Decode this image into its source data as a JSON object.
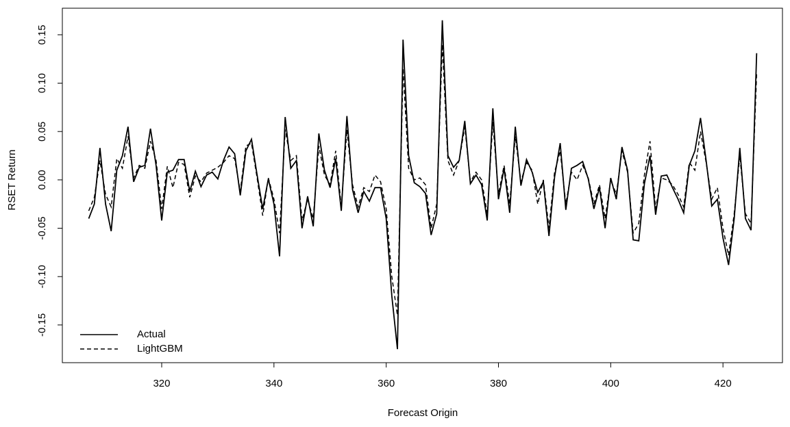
{
  "chart_data": {
    "type": "line",
    "x_label": "Forecast Origin",
    "y_label": "RSET Return",
    "x": [
      307,
      308,
      309,
      310,
      311,
      312,
      313,
      314,
      315,
      316,
      317,
      318,
      319,
      320,
      321,
      322,
      323,
      324,
      325,
      326,
      327,
      328,
      329,
      330,
      331,
      332,
      333,
      334,
      335,
      336,
      337,
      338,
      339,
      340,
      341,
      342,
      343,
      344,
      345,
      346,
      347,
      348,
      349,
      350,
      351,
      352,
      353,
      354,
      355,
      356,
      357,
      358,
      359,
      360,
      361,
      362,
      363,
      364,
      365,
      366,
      367,
      368,
      369,
      370,
      371,
      372,
      373,
      374,
      375,
      376,
      377,
      378,
      379,
      380,
      381,
      382,
      383,
      384,
      385,
      386,
      387,
      388,
      389,
      390,
      391,
      392,
      393,
      394,
      395,
      396,
      397,
      398,
      399,
      400,
      401,
      402,
      403,
      404,
      405,
      406,
      407,
      408,
      409,
      410,
      411,
      412,
      413,
      414,
      415,
      416,
      417,
      418,
      419,
      420,
      421,
      422,
      423,
      424,
      425,
      426
    ],
    "series": [
      {
        "name": "Actual",
        "color": "#000000",
        "dash": "solid",
        "values": [
          -0.04,
          -0.025,
          0.033,
          -0.025,
          -0.053,
          0.01,
          0.025,
          0.055,
          -0.002,
          0.013,
          0.015,
          0.053,
          0.015,
          -0.042,
          0.008,
          0.01,
          0.021,
          0.021,
          -0.012,
          0.009,
          -0.007,
          0.005,
          0.008,
          0.001,
          0.02,
          0.034,
          0.027,
          -0.016,
          0.03,
          0.042,
          0.005,
          -0.03,
          0.001,
          -0.025,
          -0.079,
          0.065,
          0.012,
          0.02,
          -0.05,
          -0.017,
          -0.048,
          0.048,
          0.01,
          -0.008,
          0.022,
          -0.032,
          0.066,
          -0.01,
          -0.034,
          -0.012,
          -0.022,
          -0.008,
          -0.008,
          -0.04,
          -0.12,
          -0.175,
          0.145,
          0.025,
          -0.003,
          -0.007,
          -0.014,
          -0.057,
          -0.035,
          0.165,
          0.025,
          0.013,
          0.02,
          0.061,
          -0.004,
          0.005,
          -0.005,
          -0.042,
          0.074,
          -0.02,
          0.012,
          -0.034,
          0.055,
          -0.006,
          0.021,
          0.008,
          -0.013,
          -0.002,
          -0.058,
          0.003,
          0.038,
          -0.031,
          0.012,
          0.015,
          0.019,
          0.001,
          -0.03,
          -0.008,
          -0.05,
          0.002,
          -0.02,
          0.034,
          0.01,
          -0.062,
          -0.063,
          -0.004,
          0.025,
          -0.036,
          0.004,
          0.005,
          -0.008,
          -0.02,
          -0.034,
          0.015,
          0.03,
          0.064,
          0.02,
          -0.027,
          -0.02,
          -0.06,
          -0.088,
          -0.04,
          0.033,
          -0.04,
          -0.052,
          0.131
        ]
      },
      {
        "name": "LightGBM",
        "color": "#000000",
        "dash": "dashed",
        "values": [
          -0.032,
          -0.018,
          0.02,
          -0.015,
          -0.028,
          0.022,
          0.012,
          0.045,
          0.002,
          0.015,
          0.012,
          0.04,
          0.02,
          -0.03,
          0.014,
          -0.008,
          0.018,
          0.016,
          -0.018,
          0.004,
          -0.002,
          0.007,
          0.01,
          0.013,
          0.018,
          0.025,
          0.022,
          -0.012,
          0.035,
          0.038,
          0.002,
          -0.037,
          0.002,
          -0.02,
          -0.055,
          0.052,
          0.02,
          0.025,
          -0.042,
          -0.02,
          -0.04,
          0.035,
          0.005,
          -0.005,
          0.03,
          -0.028,
          0.052,
          -0.005,
          -0.028,
          -0.008,
          -0.012,
          0.005,
          -0.002,
          -0.03,
          -0.1,
          -0.14,
          0.115,
          0.012,
          0.0,
          0.002,
          -0.005,
          -0.05,
          -0.025,
          0.14,
          0.02,
          0.005,
          0.02,
          0.055,
          -0.002,
          0.008,
          0.0,
          -0.035,
          0.06,
          -0.015,
          0.015,
          -0.025,
          0.045,
          -0.002,
          0.018,
          0.01,
          -0.025,
          0.0,
          -0.05,
          0.008,
          0.03,
          -0.025,
          0.008,
          0.0,
          0.015,
          0.002,
          -0.025,
          -0.005,
          -0.04,
          0.0,
          -0.015,
          0.03,
          0.008,
          -0.055,
          -0.045,
          0.005,
          0.04,
          -0.03,
          0.002,
          0.0,
          -0.005,
          -0.015,
          -0.028,
          0.018,
          0.01,
          0.05,
          0.018,
          -0.02,
          -0.008,
          -0.05,
          -0.078,
          -0.035,
          0.025,
          -0.035,
          -0.045,
          0.11
        ]
      }
    ],
    "xlim": [
      302.3,
      430.6
    ],
    "ylim": [
      -0.189,
      0.1775
    ],
    "xticks": [
      320,
      340,
      360,
      380,
      400,
      420
    ],
    "yticks": [
      -0.15,
      {
        "value": -0.1,
        "label": "-0.10"
      },
      -0.05,
      {
        "value": 0,
        "label": "0.00"
      },
      0.05,
      {
        "value": 0.1,
        "label": "0.10"
      },
      0.15
    ],
    "grid": false,
    "legend": "bottom-left"
  }
}
